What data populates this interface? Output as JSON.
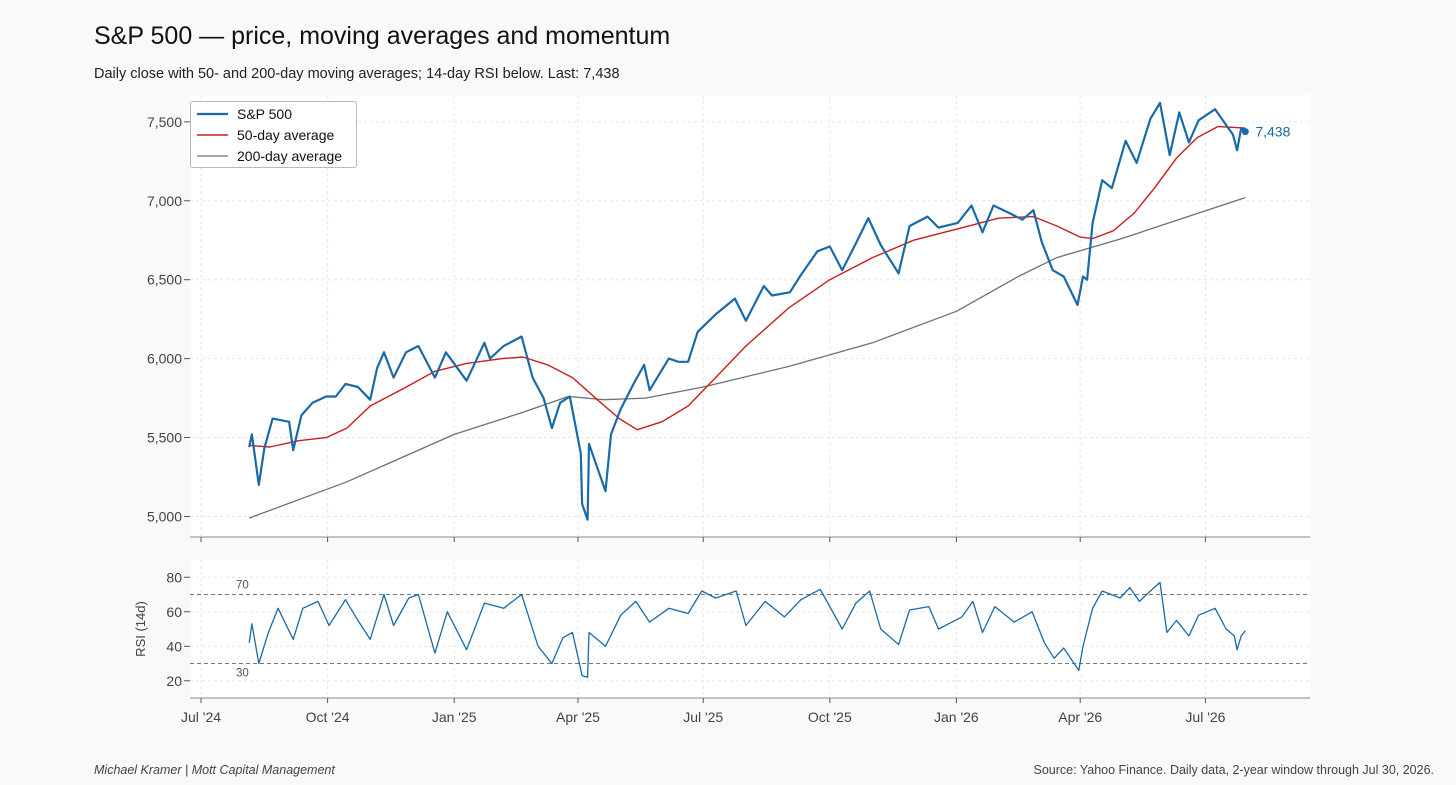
{
  "header": {
    "title": "S&P 500 — price, moving averages and momentum",
    "subtitle": "Daily close with 50- and 200-day moving averages; 14-day RSI below.   Last: 7,438"
  },
  "footer": {
    "left": "Michael Kramer  |  Mott Capital Management",
    "right": "Source: Yahoo Finance. Daily data, 2-year window through Jul 30, 2026."
  },
  "colors": {
    "price": "#1a6aa8",
    "ma50": "#c81e1e",
    "ma200": "#707070",
    "last_label": "#1a6aa8"
  },
  "chart_data": [
    {
      "type": "line",
      "panel": "price",
      "ylim": [
        4870,
        7670
      ],
      "yticks": [
        5000,
        5500,
        6000,
        6500,
        7000,
        7500
      ],
      "ytick_labels": [
        "5,000",
        "5,500",
        "6,000",
        "6,500",
        "7,000",
        "7,500"
      ],
      "grid": true,
      "legend": "top-left",
      "last_value_label": "7,438",
      "series": [
        {
          "name": "S&P 500",
          "points": [
            [
              "2024-08-05",
              5440
            ],
            [
              "2024-08-07",
              5520
            ],
            [
              "2024-08-12",
              5200
            ],
            [
              "2024-08-16",
              5430
            ],
            [
              "2024-08-22",
              5620
            ],
            [
              "2024-09-03",
              5600
            ],
            [
              "2024-09-06",
              5420
            ],
            [
              "2024-09-12",
              5640
            ],
            [
              "2024-09-20",
              5720
            ],
            [
              "2024-09-30",
              5760
            ],
            [
              "2024-10-07",
              5760
            ],
            [
              "2024-10-14",
              5840
            ],
            [
              "2024-10-23",
              5820
            ],
            [
              "2024-11-01",
              5740
            ],
            [
              "2024-11-06",
              5940
            ],
            [
              "2024-11-11",
              6040
            ],
            [
              "2024-11-18",
              5880
            ],
            [
              "2024-11-27",
              6040
            ],
            [
              "2024-12-06",
              6080
            ],
            [
              "2024-12-18",
              5880
            ],
            [
              "2024-12-26",
              6040
            ],
            [
              "2025-01-10",
              5860
            ],
            [
              "2025-01-23",
              6100
            ],
            [
              "2025-01-27",
              6000
            ],
            [
              "2025-02-06",
              6080
            ],
            [
              "2025-02-19",
              6140
            ],
            [
              "2025-02-27",
              5880
            ],
            [
              "2025-03-07",
              5750
            ],
            [
              "2025-03-13",
              5560
            ],
            [
              "2025-03-19",
              5720
            ],
            [
              "2025-03-26",
              5760
            ],
            [
              "2025-04-03",
              5400
            ],
            [
              "2025-04-04",
              5080
            ],
            [
              "2025-04-08",
              4980
            ],
            [
              "2025-04-09",
              5460
            ],
            [
              "2025-04-21",
              5160
            ],
            [
              "2025-04-25",
              5520
            ],
            [
              "2025-05-02",
              5680
            ],
            [
              "2025-05-12",
              5850
            ],
            [
              "2025-05-19",
              5960
            ],
            [
              "2025-05-23",
              5800
            ],
            [
              "2025-06-06",
              6000
            ],
            [
              "2025-06-13",
              5980
            ],
            [
              "2025-06-20",
              5980
            ],
            [
              "2025-06-27",
              6170
            ],
            [
              "2025-07-10",
              6280
            ],
            [
              "2025-07-24",
              6380
            ],
            [
              "2025-08-01",
              6240
            ],
            [
              "2025-08-14",
              6460
            ],
            [
              "2025-08-20",
              6400
            ],
            [
              "2025-09-02",
              6420
            ],
            [
              "2025-09-10",
              6530
            ],
            [
              "2025-09-22",
              6680
            ],
            [
              "2025-10-01",
              6710
            ],
            [
              "2025-10-10",
              6560
            ],
            [
              "2025-10-20",
              6730
            ],
            [
              "2025-10-29",
              6890
            ],
            [
              "2025-11-07",
              6720
            ],
            [
              "2025-11-20",
              6540
            ],
            [
              "2025-11-28",
              6840
            ],
            [
              "2025-12-11",
              6900
            ],
            [
              "2025-12-19",
              6830
            ],
            [
              "2026-01-02",
              6860
            ],
            [
              "2026-01-12",
              6970
            ],
            [
              "2026-01-20",
              6800
            ],
            [
              "2026-01-28",
              6970
            ],
            [
              "2026-02-09",
              6920
            ],
            [
              "2026-02-18",
              6880
            ],
            [
              "2026-02-26",
              6940
            ],
            [
              "2026-03-04",
              6740
            ],
            [
              "2026-03-12",
              6560
            ],
            [
              "2026-03-20",
              6520
            ],
            [
              "2026-03-30",
              6340
            ],
            [
              "2026-04-03",
              6520
            ],
            [
              "2026-04-06",
              6500
            ],
            [
              "2026-04-10",
              6860
            ],
            [
              "2026-04-17",
              7130
            ],
            [
              "2026-04-24",
              7080
            ],
            [
              "2026-05-04",
              7380
            ],
            [
              "2026-05-12",
              7240
            ],
            [
              "2026-05-22",
              7520
            ],
            [
              "2026-05-29",
              7620
            ],
            [
              "2026-06-05",
              7290
            ],
            [
              "2026-06-12",
              7560
            ],
            [
              "2026-06-19",
              7370
            ],
            [
              "2026-06-26",
              7510
            ],
            [
              "2026-07-08",
              7580
            ],
            [
              "2026-07-16",
              7480
            ],
            [
              "2026-07-21",
              7420
            ],
            [
              "2026-07-24",
              7320
            ],
            [
              "2026-07-27",
              7460
            ],
            [
              "2026-07-30",
              7438
            ]
          ]
        },
        {
          "name": "50-day average",
          "points": [
            [
              "2024-08-05",
              5450
            ],
            [
              "2024-08-20",
              5440
            ],
            [
              "2024-09-10",
              5480
            ],
            [
              "2024-09-30",
              5500
            ],
            [
              "2024-10-15",
              5560
            ],
            [
              "2024-11-01",
              5700
            ],
            [
              "2024-11-25",
              5810
            ],
            [
              "2024-12-18",
              5920
            ],
            [
              "2025-01-10",
              5970
            ],
            [
              "2025-02-05",
              6000
            ],
            [
              "2025-02-20",
              6010
            ],
            [
              "2025-03-10",
              5960
            ],
            [
              "2025-03-28",
              5880
            ],
            [
              "2025-04-15",
              5740
            ],
            [
              "2025-05-01",
              5620
            ],
            [
              "2025-05-14",
              5550
            ],
            [
              "2025-06-01",
              5600
            ],
            [
              "2025-06-20",
              5700
            ],
            [
              "2025-07-10",
              5880
            ],
            [
              "2025-08-01",
              6080
            ],
            [
              "2025-09-01",
              6320
            ],
            [
              "2025-10-01",
              6500
            ],
            [
              "2025-11-01",
              6640
            ],
            [
              "2025-12-01",
              6750
            ],
            [
              "2026-01-01",
              6820
            ],
            [
              "2026-02-01",
              6890
            ],
            [
              "2026-02-26",
              6900
            ],
            [
              "2026-03-15",
              6840
            ],
            [
              "2026-04-01",
              6770
            ],
            [
              "2026-04-10",
              6760
            ],
            [
              "2026-04-25",
              6810
            ],
            [
              "2026-05-10",
              6920
            ],
            [
              "2026-05-25",
              7080
            ],
            [
              "2026-06-10",
              7270
            ],
            [
              "2026-06-25",
              7400
            ],
            [
              "2026-07-10",
              7470
            ],
            [
              "2026-07-30",
              7460
            ]
          ]
        },
        {
          "name": "200-day average",
          "points": [
            [
              "2024-08-05",
              4990
            ],
            [
              "2024-10-15",
              5220
            ],
            [
              "2025-01-01",
              5520
            ],
            [
              "2025-02-20",
              5660
            ],
            [
              "2025-03-25",
              5760
            ],
            [
              "2025-04-20",
              5740
            ],
            [
              "2025-05-20",
              5750
            ],
            [
              "2025-07-01",
              5820
            ],
            [
              "2025-09-01",
              5950
            ],
            [
              "2025-11-01",
              6100
            ],
            [
              "2026-01-01",
              6300
            ],
            [
              "2026-02-15",
              6520
            ],
            [
              "2026-03-15",
              6640
            ],
            [
              "2026-05-01",
              6760
            ],
            [
              "2026-07-30",
              7020
            ]
          ]
        }
      ]
    },
    {
      "type": "line",
      "panel": "rsi",
      "ylabel": "RSI (14d)",
      "ylim": [
        10,
        90
      ],
      "yticks": [
        20,
        40,
        60,
        80
      ],
      "ytick_labels": [
        "20",
        "40",
        "60",
        "80"
      ],
      "reference_lines": [
        70,
        30
      ],
      "reference_labels": [
        "70",
        "30"
      ],
      "x_ticks": [
        "2024-07-01",
        "2024-10-01",
        "2025-01-01",
        "2025-04-01",
        "2025-07-01",
        "2025-10-01",
        "2026-01-01",
        "2026-04-01",
        "2026-07-01"
      ],
      "x_tick_labels": [
        "Jul '24",
        "Oct '24",
        "Jan '25",
        "Apr '25",
        "Jul '25",
        "Oct '25",
        "Jan '26",
        "Apr '26",
        "Jul '26"
      ],
      "xlim": [
        "2024-06-23",
        "2026-09-15"
      ],
      "series": [
        {
          "name": "RSI",
          "points": [
            [
              "2024-08-05",
              42
            ],
            [
              "2024-08-07",
              53
            ],
            [
              "2024-08-12",
              30
            ],
            [
              "2024-08-19",
              48
            ],
            [
              "2024-08-26",
              62
            ],
            [
              "2024-09-06",
              44
            ],
            [
              "2024-09-13",
              62
            ],
            [
              "2024-09-24",
              66
            ],
            [
              "2024-10-02",
              52
            ],
            [
              "2024-10-14",
              67
            ],
            [
              "2024-10-23",
              55
            ],
            [
              "2024-11-01",
              44
            ],
            [
              "2024-11-11",
              70
            ],
            [
              "2024-11-18",
              52
            ],
            [
              "2024-11-29",
              68
            ],
            [
              "2024-12-06",
              70
            ],
            [
              "2024-12-18",
              36
            ],
            [
              "2024-12-27",
              60
            ],
            [
              "2025-01-10",
              38
            ],
            [
              "2025-01-23",
              65
            ],
            [
              "2025-02-06",
              62
            ],
            [
              "2025-02-19",
              70
            ],
            [
              "2025-03-03",
              40
            ],
            [
              "2025-03-13",
              30
            ],
            [
              "2025-03-21",
              45
            ],
            [
              "2025-03-28",
              48
            ],
            [
              "2025-04-04",
              23
            ],
            [
              "2025-04-08",
              22
            ],
            [
              "2025-04-09",
              48
            ],
            [
              "2025-04-21",
              40
            ],
            [
              "2025-05-02",
              58
            ],
            [
              "2025-05-13",
              66
            ],
            [
              "2025-05-23",
              54
            ],
            [
              "2025-06-06",
              62
            ],
            [
              "2025-06-20",
              59
            ],
            [
              "2025-06-30",
              72
            ],
            [
              "2025-07-10",
              68
            ],
            [
              "2025-07-25",
              72
            ],
            [
              "2025-08-01",
              52
            ],
            [
              "2025-08-15",
              66
            ],
            [
              "2025-08-29",
              57
            ],
            [
              "2025-09-10",
              67
            ],
            [
              "2025-09-24",
              73
            ],
            [
              "2025-10-10",
              50
            ],
            [
              "2025-10-20",
              65
            ],
            [
              "2025-10-30",
              72
            ],
            [
              "2025-11-07",
              50
            ],
            [
              "2025-11-20",
              41
            ],
            [
              "2025-11-28",
              61
            ],
            [
              "2025-12-12",
              63
            ],
            [
              "2025-12-19",
              50
            ],
            [
              "2026-01-05",
              57
            ],
            [
              "2026-01-13",
              66
            ],
            [
              "2026-01-20",
              48
            ],
            [
              "2026-01-29",
              63
            ],
            [
              "2026-02-12",
              54
            ],
            [
              "2026-02-25",
              60
            ],
            [
              "2026-03-06",
              42
            ],
            [
              "2026-03-13",
              33
            ],
            [
              "2026-03-20",
              39
            ],
            [
              "2026-03-31",
              26
            ],
            [
              "2026-04-03",
              40
            ],
            [
              "2026-04-10",
              62
            ],
            [
              "2026-04-17",
              72
            ],
            [
              "2026-04-30",
              68
            ],
            [
              "2026-05-07",
              74
            ],
            [
              "2026-05-14",
              66
            ],
            [
              "2026-05-22",
              72
            ],
            [
              "2026-05-29",
              77
            ],
            [
              "2026-06-03",
              48
            ],
            [
              "2026-06-10",
              55
            ],
            [
              "2026-06-19",
              46
            ],
            [
              "2026-06-26",
              58
            ],
            [
              "2026-07-08",
              62
            ],
            [
              "2026-07-16",
              50
            ],
            [
              "2026-07-22",
              46
            ],
            [
              "2026-07-24",
              38
            ],
            [
              "2026-07-27",
              46
            ],
            [
              "2026-07-30",
              49
            ]
          ]
        }
      ]
    }
  ]
}
